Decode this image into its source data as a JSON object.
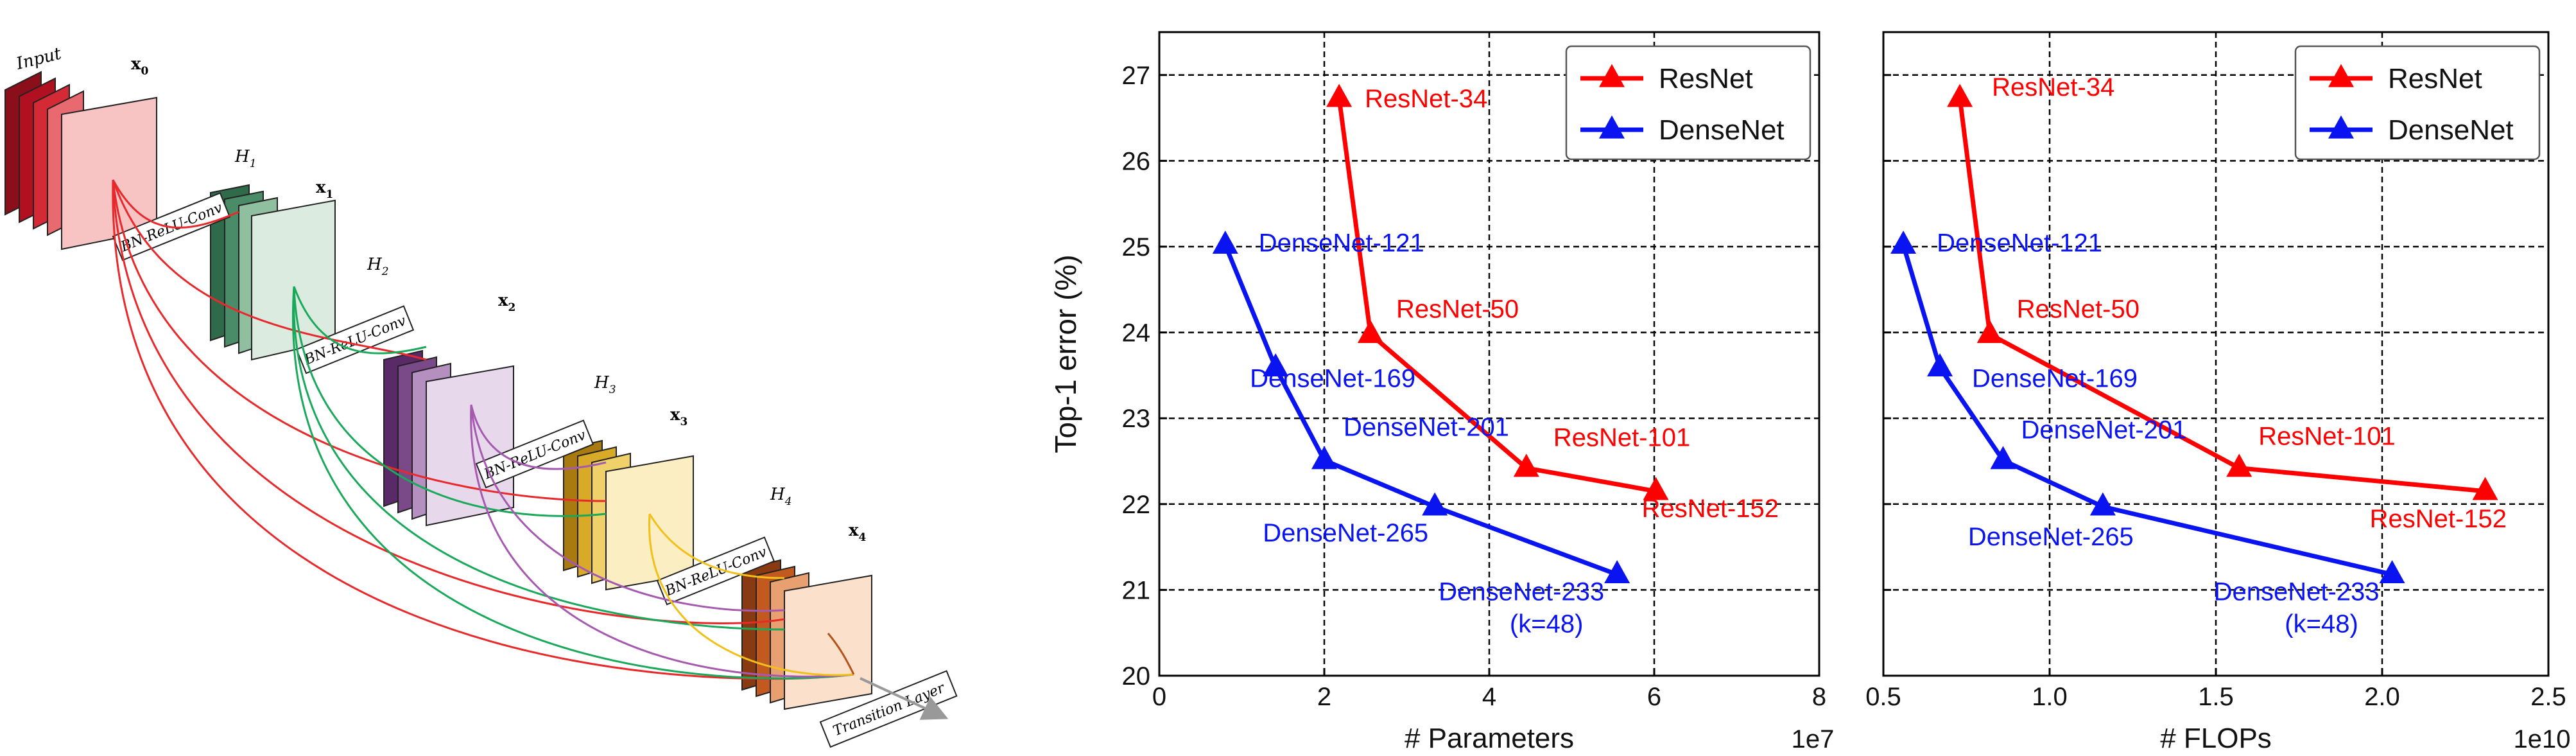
{
  "diagram": {
    "input_label": "Input",
    "layers": [
      {
        "h": "H",
        "h_sub": "1",
        "x": "x",
        "x_sub": "1",
        "op": "BN-ReLU-Conv"
      },
      {
        "h": "H",
        "h_sub": "2",
        "x": "x",
        "x_sub": "2",
        "op": "BN-ReLU-Conv"
      },
      {
        "h": "H",
        "h_sub": "3",
        "x": "x",
        "x_sub": "3",
        "op": "BN-ReLU-Conv"
      },
      {
        "h": "H",
        "h_sub": "4",
        "x": "x",
        "x_sub": "4",
        "op": "BN-ReLU-Conv"
      }
    ],
    "x0": "x",
    "x0_sub": "0",
    "transition_label": "Transition Layer",
    "colors": {
      "input": "#b0101f",
      "block1": "#3f7f5a",
      "block2": "#6a3a78",
      "block3": "#c8961e",
      "block4": "#b5521a",
      "arrow_red": "#e8292b",
      "arrow_green": "#1aa85a",
      "arrow_purple": "#a55ab0",
      "arrow_yellow": "#f2c01a"
    }
  },
  "chart_data": [
    {
      "type": "line",
      "xlabel": "# Parameters",
      "x_multiplier": "1e7",
      "ylabel": "Top-1 error (%)",
      "xlim": [
        0,
        8
      ],
      "ylim": [
        20,
        27.5
      ],
      "xticks": [
        "0",
        "2",
        "4",
        "6",
        "8"
      ],
      "xtick_values": [
        0,
        2,
        4,
        6,
        8
      ],
      "yticks": [
        "20",
        "21",
        "22",
        "23",
        "24",
        "25",
        "26",
        "27"
      ],
      "ytick_values": [
        20,
        21,
        22,
        23,
        24,
        25,
        26,
        27
      ],
      "grid": true,
      "legend_position": "top-right",
      "series": [
        {
          "name": "ResNet",
          "color": "#ff0000",
          "points": [
            {
              "x": 2.18,
              "y": 26.73,
              "label": "ResNet-34"
            },
            {
              "x": 2.56,
              "y": 23.98,
              "label": "ResNet-50"
            },
            {
              "x": 4.45,
              "y": 22.42,
              "label": "ResNet-101"
            },
            {
              "x": 6.02,
              "y": 22.15,
              "label": "ResNet-152"
            }
          ]
        },
        {
          "name": "DenseNet",
          "color": "#0a14f0",
          "points": [
            {
              "x": 0.8,
              "y": 25.02,
              "label": "DenseNet-121"
            },
            {
              "x": 1.41,
              "y": 23.59,
              "label": "DenseNet-169"
            },
            {
              "x": 2.0,
              "y": 22.51,
              "label": "DenseNet-201"
            },
            {
              "x": 3.34,
              "y": 21.97,
              "label": "DenseNet-265"
            },
            {
              "x": 5.55,
              "y": 21.18,
              "label": "DenseNet-233",
              "label2": "(k=48)"
            }
          ]
        }
      ]
    },
    {
      "type": "line",
      "xlabel": "# FLOPs",
      "x_multiplier": "1e10",
      "ylabel": "",
      "xlim": [
        0.5,
        2.5
      ],
      "ylim": [
        20,
        27.5
      ],
      "xticks": [
        "0.5",
        "1.0",
        "1.5",
        "2.0",
        "2.5"
      ],
      "xtick_values": [
        0.5,
        1.0,
        1.5,
        2.0,
        2.5
      ],
      "yticks": [],
      "ytick_values": [
        20,
        21,
        22,
        23,
        24,
        25,
        26,
        27
      ],
      "grid": true,
      "legend_position": "top-right",
      "series": [
        {
          "name": "ResNet",
          "color": "#ff0000",
          "points": [
            {
              "x": 0.73,
              "y": 26.73,
              "label": "ResNet-34"
            },
            {
              "x": 0.82,
              "y": 23.98,
              "label": "ResNet-50"
            },
            {
              "x": 1.57,
              "y": 22.42,
              "label": "ResNet-101"
            },
            {
              "x": 2.31,
              "y": 22.15,
              "label": "ResNet-152"
            }
          ]
        },
        {
          "name": "DenseNet",
          "color": "#0a14f0",
          "points": [
            {
              "x": 0.56,
              "y": 25.02,
              "label": "DenseNet-121"
            },
            {
              "x": 0.67,
              "y": 23.59,
              "label": "DenseNet-169"
            },
            {
              "x": 0.86,
              "y": 22.51,
              "label": "DenseNet-201"
            },
            {
              "x": 1.16,
              "y": 21.97,
              "label": "DenseNet-265"
            },
            {
              "x": 2.03,
              "y": 21.18,
              "label": "DenseNet-233",
              "label2": "(k=48)"
            }
          ]
        }
      ]
    }
  ]
}
